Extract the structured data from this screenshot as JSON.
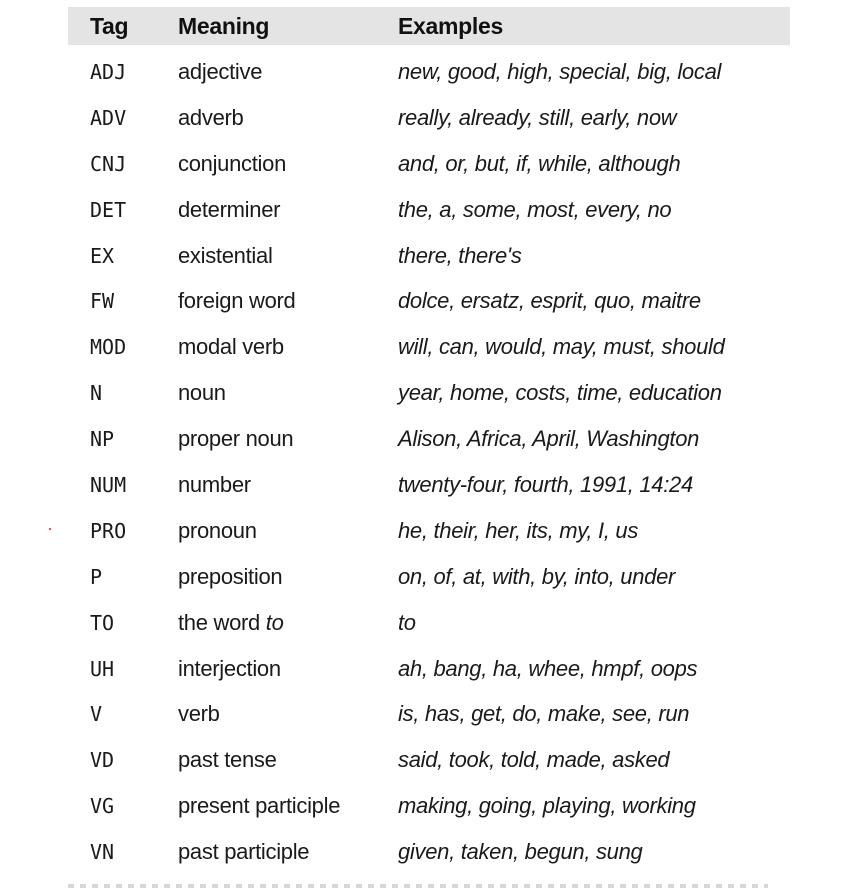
{
  "table": {
    "headers": {
      "tag": "Tag",
      "meaning": "Meaning",
      "examples": "Examples"
    },
    "rows": [
      {
        "tag": "ADJ",
        "meaning": "adjective",
        "examples": "new, good, high, special, big, local"
      },
      {
        "tag": "ADV",
        "meaning": "adverb",
        "examples": "really, already, still, early, now"
      },
      {
        "tag": "CNJ",
        "meaning": "conjunction",
        "examples": "and, or, but, if, while, although"
      },
      {
        "tag": "DET",
        "meaning": "determiner",
        "examples": "the, a, some, most, every, no"
      },
      {
        "tag": "EX",
        "meaning": "existential",
        "examples": "there, there's"
      },
      {
        "tag": "FW",
        "meaning": "foreign word",
        "examples": "dolce, ersatz, esprit, quo, maitre"
      },
      {
        "tag": "MOD",
        "meaning": "modal verb",
        "examples": "will, can, would, may, must, should"
      },
      {
        "tag": "N",
        "meaning": "noun",
        "examples": "year, home, costs, time, education"
      },
      {
        "tag": "NP",
        "meaning": "proper noun",
        "examples": "Alison, Africa, April, Washington"
      },
      {
        "tag": "NUM",
        "meaning": "number",
        "examples": "twenty-four, fourth, 1991, 14:24"
      },
      {
        "tag": "PRO",
        "meaning": "pronoun",
        "examples": "he, their, her, its, my, I, us"
      },
      {
        "tag": "P",
        "meaning": "preposition",
        "examples": "on, of, at, with, by, into, under"
      },
      {
        "tag": "TO",
        "meaning_prefix": "the word ",
        "meaning_emph": "to",
        "examples": "to"
      },
      {
        "tag": "UH",
        "meaning": "interjection",
        "examples": "ah, bang, ha, whee, hmpf, oops"
      },
      {
        "tag": "V",
        "meaning": "verb",
        "examples": "is, has, get, do, make, see, run"
      },
      {
        "tag": "VD",
        "meaning": "past tense",
        "examples": "said, took, told, made, asked"
      },
      {
        "tag": "VG",
        "meaning": "present participle",
        "examples": "making, going, playing, working"
      },
      {
        "tag": "VN",
        "meaning": "past participle",
        "examples": "given, taken, begun, sung"
      }
    ]
  },
  "colors": {
    "header_background": "#e4e4e4",
    "text": "#1a1a1a",
    "stray_mark": "#e11111"
  }
}
